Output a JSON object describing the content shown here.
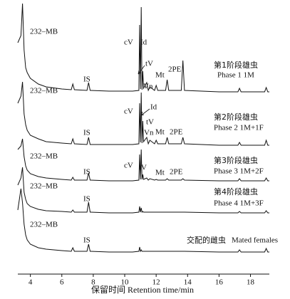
{
  "chart_data": {
    "type": "line",
    "xlabel": "保留时间 Retention time/min",
    "xlim": [
      3.2,
      19.2
    ],
    "xticks": [
      4,
      6,
      8,
      10,
      12,
      14,
      16,
      18
    ],
    "color": "#111111",
    "x": [
      3.2,
      3.4,
      3.5,
      3.6,
      3.7,
      3.8,
      4.0,
      4.5,
      5,
      6,
      6.6,
      6.7,
      6.8,
      7.6,
      7.7,
      7.8,
      9,
      10.5,
      10.9,
      10.95,
      11.0,
      11.05,
      11.1,
      11.15,
      11.2,
      11.4,
      11.5,
      11.6,
      11.9,
      12.0,
      12.1,
      12.6,
      12.7,
      12.8,
      13.6,
      13.7,
      13.8,
      16,
      17.2,
      17.3,
      17.4,
      18.9,
      19.0,
      19.1,
      19.2
    ],
    "series": [
      {
        "name": "第1阶段雄虫",
        "name_en": "Phase 1 1M",
        "peak_labels": [
          "232–MB",
          "IS",
          "cV",
          "Id",
          "tV",
          "Vn",
          "Mt",
          "2PE"
        ],
        "values": [
          70,
          80,
          125,
          60,
          35,
          28,
          20,
          12,
          8,
          5,
          4,
          12,
          4,
          3,
          14,
          3,
          2,
          2,
          3,
          95,
          5,
          120,
          4,
          30,
          6,
          14,
          3,
          8,
          3,
          10,
          3,
          3,
          18,
          3,
          3,
          45,
          3,
          1,
          1,
          6,
          1,
          1,
          7,
          1,
          1
        ]
      },
      {
        "name": "第2阶段雄虫",
        "name_en": "Phase 2 1M+1F",
        "peak_labels": [
          "232–MB",
          "IS",
          "cV",
          "Id",
          "tV",
          "Vn",
          "Mt",
          "2PE"
        ],
        "values": [
          60,
          70,
          90,
          45,
          30,
          22,
          15,
          10,
          6,
          4,
          3,
          10,
          3,
          2,
          12,
          2,
          2,
          2,
          3,
          60,
          5,
          75,
          4,
          35,
          6,
          12,
          3,
          8,
          3,
          8,
          3,
          3,
          12,
          3,
          3,
          12,
          3,
          1,
          1,
          5,
          1,
          1,
          8,
          1,
          1
        ]
      },
      {
        "name": "第3阶段雄虫",
        "name_en": "Phase 3 1M+2F",
        "peak_labels": [
          "232–MB",
          "IS",
          "cV",
          "tV",
          "Mt",
          "2PE"
        ],
        "values": [
          45,
          50,
          60,
          35,
          22,
          16,
          11,
          7,
          5,
          3,
          2,
          6,
          2,
          2,
          12,
          2,
          1,
          1,
          2,
          38,
          3,
          45,
          3,
          10,
          3,
          5,
          2,
          4,
          2,
          3,
          2,
          2,
          4,
          2,
          2,
          4,
          2,
          1,
          1,
          4,
          1,
          1,
          5,
          1,
          1
        ]
      },
      {
        "name": "第4阶段雄虫",
        "name_en": "Phase 4 1M+3F",
        "peak_labels": [
          "232–MB",
          "IS"
        ],
        "values": [
          40,
          50,
          65,
          30,
          20,
          14,
          10,
          6,
          4,
          3,
          2,
          5,
          2,
          2,
          16,
          2,
          1,
          1,
          2,
          10,
          2,
          8,
          2,
          3,
          2,
          2,
          2,
          2,
          2,
          2,
          2,
          2,
          2,
          2,
          2,
          2,
          2,
          1,
          1,
          3,
          1,
          1,
          4,
          1,
          1
        ]
      },
      {
        "name": "交配的雌虫",
        "name_en": "Mated females",
        "peak_labels": [
          "232–MB",
          "IS"
        ],
        "values": [
          60,
          90,
          70,
          40,
          25,
          18,
          12,
          7,
          5,
          3,
          2,
          7,
          2,
          2,
          12,
          2,
          1,
          1,
          2,
          8,
          2,
          4,
          2,
          2,
          2,
          2,
          2,
          2,
          2,
          2,
          2,
          2,
          2,
          2,
          2,
          2,
          2,
          1,
          1,
          4,
          1,
          1,
          6,
          1,
          1
        ]
      }
    ]
  }
}
